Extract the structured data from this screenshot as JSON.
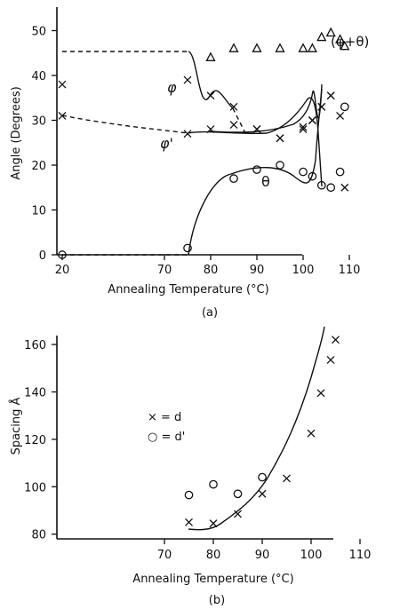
{
  "chart_data": [
    {
      "type": "scatter",
      "panel_label": "(a)",
      "xlabel": "Annealing Temperature (°C)",
      "ylabel": "Angle (Degrees)",
      "x_ticks": [
        20,
        70,
        80,
        90,
        100,
        110
      ],
      "x_axis_note": "broken axis: 20 then 70-110",
      "y_ticks": [
        0,
        10,
        20,
        30,
        40,
        50
      ],
      "ylim": [
        0,
        53
      ],
      "series": [
        {
          "name": "φ",
          "marker": "x",
          "points": [
            [
              20,
              38
            ],
            [
              75,
              39
            ],
            [
              80,
              35.5
            ],
            [
              85,
              33
            ],
            [
              90,
              28
            ],
            [
              95,
              26
            ],
            [
              100,
              28.5
            ],
            [
              102,
              30
            ],
            [
              104,
              33
            ],
            [
              106,
              35.5
            ],
            [
              109,
              15
            ]
          ]
        },
        {
          "name": "φ'",
          "marker": "x",
          "points": [
            [
              20,
              31
            ],
            [
              75,
              27
            ],
            [
              80,
              28
            ],
            [
              85,
              29
            ],
            [
              90,
              28
            ],
            [
              95,
              26
            ],
            [
              100,
              28
            ],
            [
              102,
              30
            ],
            [
              104,
              33
            ],
            [
              106,
              35.5
            ],
            [
              108,
              31
            ]
          ]
        },
        {
          "name": "θ",
          "marker": "o",
          "points": [
            [
              20,
              0
            ],
            [
              75,
              1.5
            ],
            [
              85,
              17
            ],
            [
              90,
              19
            ],
            [
              95,
              20
            ],
            [
              100,
              18.5
            ],
            [
              102,
              17.5
            ],
            [
              104,
              15.5
            ],
            [
              106,
              15
            ],
            [
              108,
              18.5
            ],
            [
              109,
              33
            ]
          ]
        },
        {
          "name": "(φ+θ)",
          "marker": "triangle",
          "points": [
            [
              80,
              44
            ],
            [
              85,
              46
            ],
            [
              90,
              46
            ],
            [
              95,
              46
            ],
            [
              100,
              46
            ],
            [
              102,
              46
            ],
            [
              104,
              48.5
            ],
            [
              106,
              49.5
            ],
            [
              108,
              48
            ],
            [
              109,
              46.5
            ]
          ]
        }
      ],
      "curve_labels": [
        "φ",
        "φ'",
        "θ",
        "(φ+θ)"
      ]
    },
    {
      "type": "scatter",
      "panel_label": "(b)",
      "xlabel": "Annealing Temperature (°C)",
      "ylabel": "Spacing Å",
      "x_ticks": [
        70,
        80,
        90,
        100,
        110
      ],
      "y_ticks": [
        80,
        100,
        120,
        140,
        160
      ],
      "ylim": [
        78,
        168
      ],
      "legend": [
        "× = d",
        "○ = d'"
      ],
      "series": [
        {
          "name": "d",
          "marker": "x",
          "points": [
            [
              75,
              85
            ],
            [
              80,
              84.5
            ],
            [
              85,
              88.5
            ],
            [
              90,
              97
            ],
            [
              95,
              103.5
            ],
            [
              100,
              122.5
            ],
            [
              102,
              139.5
            ],
            [
              104,
              153.5
            ],
            [
              105,
              162
            ]
          ]
        },
        {
          "name": "d'",
          "marker": "o",
          "points": [
            [
              75,
              96.5
            ],
            [
              80,
              101
            ],
            [
              85,
              97
            ],
            [
              90,
              104
            ]
          ]
        }
      ]
    }
  ]
}
